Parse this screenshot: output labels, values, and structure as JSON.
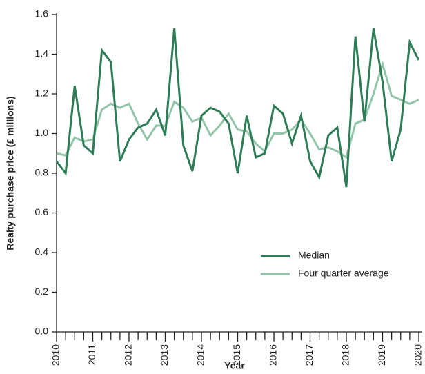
{
  "chart_data": {
    "type": "line",
    "x_label": "Year",
    "y_label": "Realty purchase price (£ millions)",
    "x": [
      2010,
      2010.25,
      2010.5,
      2010.75,
      2011,
      2011.25,
      2011.5,
      2011.75,
      2012,
      2012.25,
      2012.5,
      2012.75,
      2013,
      2013.25,
      2013.5,
      2013.75,
      2014,
      2014.25,
      2014.5,
      2014.75,
      2015,
      2015.25,
      2015.5,
      2015.75,
      2016,
      2016.25,
      2016.5,
      2016.75,
      2017,
      2017.25,
      2017.5,
      2017.75,
      2018,
      2018.25,
      2018.5,
      2018.75,
      2019,
      2019.25,
      2019.5,
      2019.75,
      2020
    ],
    "series": [
      {
        "name": "Median",
        "color": "#2e7d57",
        "values": [
          0.86,
          0.8,
          1.24,
          0.94,
          0.9,
          1.42,
          1.36,
          0.86,
          0.97,
          1.03,
          1.05,
          1.12,
          0.99,
          1.53,
          0.94,
          0.81,
          1.09,
          1.13,
          1.11,
          1.05,
          0.8,
          1.09,
          0.88,
          0.9,
          1.14,
          1.1,
          0.95,
          1.09,
          0.86,
          0.78,
          0.99,
          1.03,
          0.73,
          1.49,
          1.06,
          1.53,
          1.26,
          0.86,
          1.02,
          1.46,
          1.37
        ]
      },
      {
        "name": "Four quarter average",
        "color": "#93c5a8",
        "values": [
          0.9,
          0.89,
          0.98,
          0.96,
          0.97,
          1.12,
          1.15,
          1.13,
          1.15,
          1.05,
          0.97,
          1.04,
          1.04,
          1.16,
          1.13,
          1.06,
          1.08,
          0.99,
          1.04,
          1.1,
          1.02,
          1.01,
          0.95,
          0.91,
          1.0,
          1.0,
          1.02,
          1.07,
          1.0,
          0.92,
          0.93,
          0.91,
          0.88,
          1.05,
          1.07,
          1.2,
          1.35,
          1.19,
          1.17,
          1.15,
          1.17
        ]
      }
    ],
    "xlim": [
      2010,
      2020
    ],
    "xticks": [
      2010,
      2011,
      2012,
      2013,
      2014,
      2015,
      2016,
      2017,
      2018,
      2019,
      2020
    ],
    "ylim": [
      0,
      1.6
    ],
    "yticks": [
      {
        "value": 0,
        "label": "0.0"
      },
      0.2,
      0.4,
      0.6,
      0.8,
      {
        "value": 1,
        "label": "1.0"
      },
      1.2,
      1.4,
      1.6
    ],
    "grid": false,
    "legend": "lower right"
  }
}
